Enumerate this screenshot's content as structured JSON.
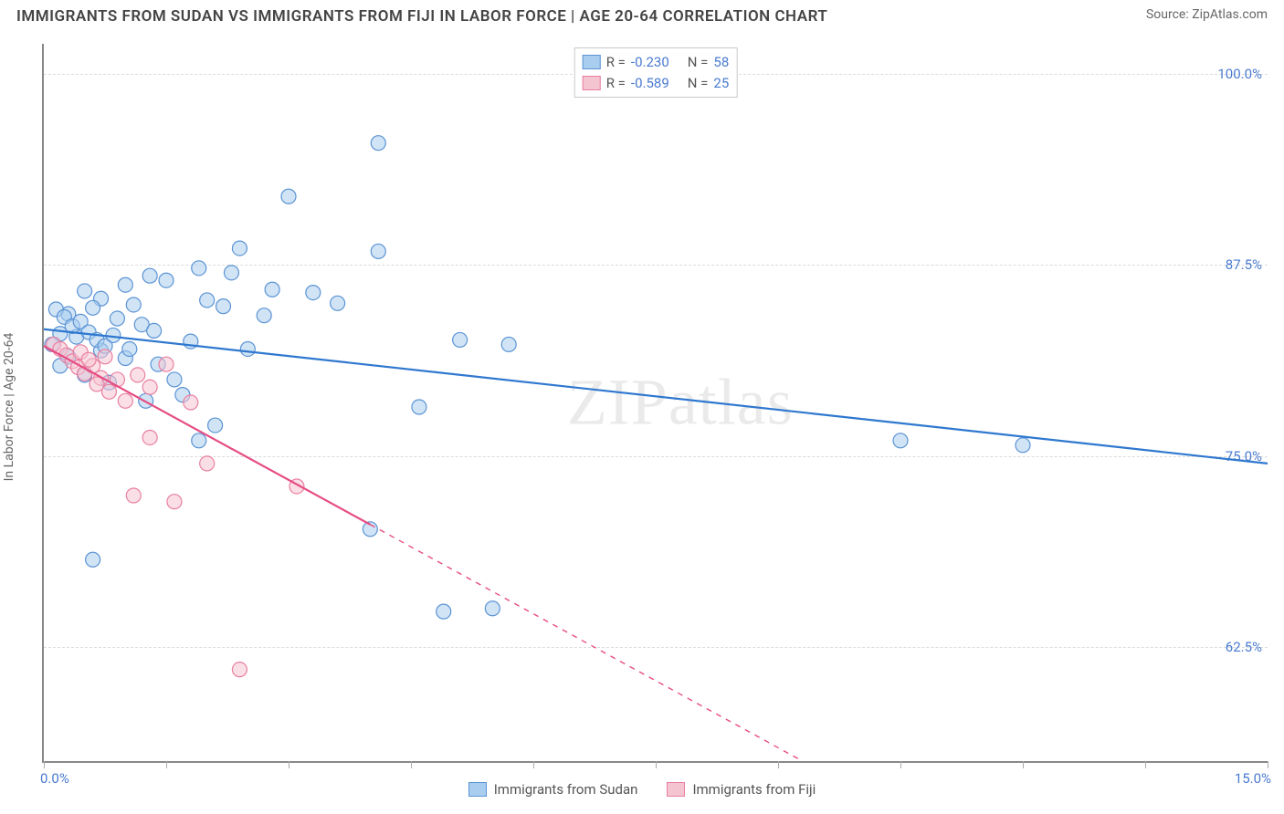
{
  "title": "IMMIGRANTS FROM SUDAN VS IMMIGRANTS FROM FIJI IN LABOR FORCE | AGE 20-64 CORRELATION CHART",
  "source_label": "Source: ",
  "source_value": "ZipAtlas.com",
  "y_axis_label": "In Labor Force | Age 20-64",
  "watermark": "ZIPatlas",
  "chart": {
    "type": "scatter",
    "x_min": 0.0,
    "x_max": 15.0,
    "x_min_label": "0.0%",
    "x_max_label": "15.0%",
    "x_ticks": [
      0.0,
      1.5,
      3.0,
      4.5,
      6.0,
      7.5,
      9.0,
      10.5,
      12.0,
      13.5,
      15.0
    ],
    "y_min": 55.0,
    "y_max": 102.0,
    "y_gridlines": [
      62.5,
      75.0,
      87.5,
      100.0
    ],
    "y_tick_labels": [
      "62.5%",
      "75.0%",
      "87.5%",
      "100.0%"
    ],
    "grid_color": "#dcdcdc",
    "axis_color": "#888888",
    "background_color": "#ffffff",
    "marker_radius": 8,
    "marker_opacity": 0.55,
    "line_width": 2.2
  },
  "series": [
    {
      "name": "Immigrants from Sudan",
      "fill": "#a9cdef",
      "stroke": "#5b93d4",
      "line_color": "#2f78cf",
      "R_label": "R = ",
      "R": "-0.230",
      "N_label": "N = ",
      "N": "58",
      "trend": {
        "x1": 0.0,
        "y1": 83.3,
        "x2": 15.0,
        "y2": 74.5,
        "dash_after_x": 15.0
      },
      "points": [
        [
          4.1,
          95.5
        ],
        [
          3.0,
          92.0
        ],
        [
          2.4,
          88.6
        ],
        [
          4.1,
          88.4
        ],
        [
          1.9,
          87.3
        ],
        [
          2.3,
          87.0
        ],
        [
          1.0,
          86.2
        ],
        [
          0.5,
          85.8
        ],
        [
          0.7,
          85.3
        ],
        [
          1.3,
          86.8
        ],
        [
          1.5,
          86.5
        ],
        [
          2.8,
          85.9
        ],
        [
          3.3,
          85.7
        ],
        [
          2.0,
          85.2
        ],
        [
          0.6,
          84.7
        ],
        [
          0.3,
          84.3
        ],
        [
          0.9,
          84.0
        ],
        [
          1.2,
          83.6
        ],
        [
          1.8,
          82.5
        ],
        [
          0.4,
          82.8
        ],
        [
          0.2,
          83.0
        ],
        [
          0.1,
          82.3
        ],
        [
          0.7,
          81.9
        ],
        [
          1.0,
          81.4
        ],
        [
          1.4,
          81.0
        ],
        [
          2.5,
          82.0
        ],
        [
          0.3,
          81.5
        ],
        [
          0.2,
          80.9
        ],
        [
          0.5,
          80.3
        ],
        [
          0.8,
          79.8
        ],
        [
          1.7,
          79.0
        ],
        [
          2.2,
          84.8
        ],
        [
          2.7,
          84.2
        ],
        [
          3.6,
          85.0
        ],
        [
          5.1,
          82.6
        ],
        [
          5.7,
          82.3
        ],
        [
          4.6,
          78.2
        ],
        [
          4.0,
          70.2
        ],
        [
          5.5,
          65.0
        ],
        [
          0.6,
          68.2
        ],
        [
          10.5,
          76.0
        ],
        [
          12.0,
          75.7
        ],
        [
          4.9,
          64.8
        ],
        [
          0.15,
          84.6
        ],
        [
          0.25,
          84.1
        ],
        [
          0.35,
          83.5
        ],
        [
          0.45,
          83.8
        ],
        [
          0.55,
          83.1
        ],
        [
          0.65,
          82.6
        ],
        [
          0.75,
          82.2
        ],
        [
          0.85,
          82.9
        ],
        [
          1.1,
          84.9
        ],
        [
          1.25,
          78.6
        ],
        [
          1.6,
          80.0
        ],
        [
          1.05,
          82.0
        ],
        [
          1.35,
          83.2
        ],
        [
          1.9,
          76.0
        ],
        [
          2.1,
          77.0
        ]
      ]
    },
    {
      "name": "Immigrants from Fiji",
      "fill": "#f5c4d1",
      "stroke": "#e97fa0",
      "line_color": "#e64d84",
      "R_label": "R = ",
      "R": "-0.589",
      "N_label": "N = ",
      "N": "25",
      "trend": {
        "x1": 0.0,
        "y1": 82.2,
        "x2": 9.3,
        "y2": 55.0,
        "dash_after_x": 4.0
      },
      "points": [
        [
          0.12,
          82.3
        ],
        [
          0.2,
          82.0
        ],
        [
          0.28,
          81.6
        ],
        [
          0.35,
          81.2
        ],
        [
          0.42,
          80.8
        ],
        [
          0.5,
          80.4
        ],
        [
          0.6,
          80.9
        ],
        [
          0.7,
          80.1
        ],
        [
          0.45,
          81.8
        ],
        [
          0.55,
          81.3
        ],
        [
          0.65,
          79.7
        ],
        [
          0.8,
          79.2
        ],
        [
          0.9,
          80.0
        ],
        [
          1.0,
          78.6
        ],
        [
          1.15,
          80.3
        ],
        [
          1.3,
          79.5
        ],
        [
          1.5,
          81.0
        ],
        [
          1.3,
          76.2
        ],
        [
          1.8,
          78.5
        ],
        [
          2.0,
          74.5
        ],
        [
          1.1,
          72.4
        ],
        [
          1.6,
          72.0
        ],
        [
          2.4,
          61.0
        ],
        [
          3.1,
          73.0
        ],
        [
          0.75,
          81.5
        ]
      ]
    }
  ],
  "legend_bottom": [
    {
      "label": "Immigrants from Sudan",
      "fill": "#a9cdef",
      "stroke": "#5b93d4"
    },
    {
      "label": "Immigrants from Fiji",
      "fill": "#f5c4d1",
      "stroke": "#e97fa0"
    }
  ]
}
